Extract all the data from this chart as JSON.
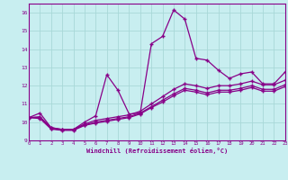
{
  "xlabel": "Windchill (Refroidissement éolien,°C)",
  "bg_color": "#c8eef0",
  "grid_color": "#a8d8d8",
  "line_color": "#880088",
  "xlim": [
    0,
    23
  ],
  "ylim": [
    9,
    16.5
  ],
  "xticks": [
    0,
    1,
    2,
    3,
    4,
    5,
    6,
    7,
    8,
    9,
    10,
    11,
    12,
    13,
    14,
    15,
    16,
    17,
    18,
    19,
    20,
    21,
    22,
    23
  ],
  "yticks": [
    9,
    10,
    11,
    12,
    13,
    14,
    15,
    16
  ],
  "lines": [
    {
      "x": [
        0,
        1,
        2,
        3,
        4,
        5,
        6,
        7,
        8,
        9,
        10,
        11,
        12,
        13,
        14,
        15,
        16,
        17,
        18,
        19,
        20,
        21,
        22,
        23
      ],
      "y": [
        10.25,
        10.5,
        9.7,
        9.6,
        9.6,
        10.0,
        10.35,
        12.6,
        11.75,
        10.45,
        10.5,
        14.3,
        14.7,
        16.15,
        15.65,
        13.5,
        13.4,
        12.85,
        12.4,
        12.65,
        12.75,
        12.1,
        12.1,
        12.75
      ]
    },
    {
      "x": [
        0,
        1,
        2,
        3,
        4,
        5,
        6,
        7,
        8,
        9,
        10,
        11,
        12,
        13,
        14,
        15,
        16,
        17,
        18,
        19,
        20,
        21,
        22,
        23
      ],
      "y": [
        10.25,
        10.3,
        9.7,
        9.6,
        9.6,
        9.9,
        10.1,
        10.2,
        10.3,
        10.4,
        10.6,
        11.0,
        11.4,
        11.8,
        12.1,
        12.0,
        11.85,
        12.0,
        12.0,
        12.1,
        12.25,
        12.05,
        12.05,
        12.3
      ]
    },
    {
      "x": [
        0,
        1,
        2,
        3,
        4,
        5,
        6,
        7,
        8,
        9,
        10,
        11,
        12,
        13,
        14,
        15,
        16,
        17,
        18,
        19,
        20,
        21,
        22,
        23
      ],
      "y": [
        10.25,
        10.25,
        9.65,
        9.58,
        9.58,
        9.85,
        10.0,
        10.1,
        10.2,
        10.3,
        10.5,
        10.85,
        11.2,
        11.55,
        11.85,
        11.75,
        11.6,
        11.75,
        11.75,
        11.85,
        12.0,
        11.8,
        11.8,
        12.05
      ]
    },
    {
      "x": [
        0,
        1,
        2,
        3,
        4,
        5,
        6,
        7,
        8,
        9,
        10,
        11,
        12,
        13,
        14,
        15,
        16,
        17,
        18,
        19,
        20,
        21,
        22,
        23
      ],
      "y": [
        10.25,
        10.2,
        9.62,
        9.55,
        9.55,
        9.82,
        9.95,
        10.05,
        10.15,
        10.25,
        10.45,
        10.8,
        11.1,
        11.45,
        11.75,
        11.65,
        11.5,
        11.65,
        11.65,
        11.75,
        11.9,
        11.7,
        11.7,
        11.95
      ]
    }
  ]
}
